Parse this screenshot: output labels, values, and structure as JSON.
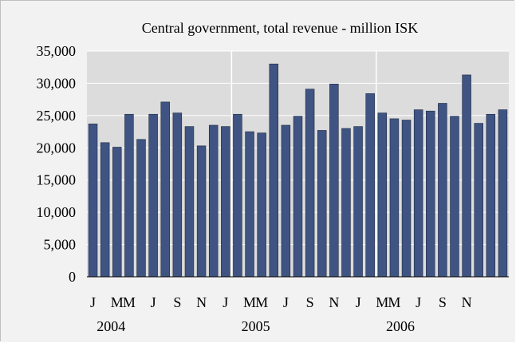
{
  "chart_data": {
    "type": "bar",
    "title": "Central government, total revenue - million ISK",
    "xlabel": "",
    "ylabel": "",
    "ylim": [
      0,
      35000
    ],
    "yticks": [
      0,
      5000,
      10000,
      15000,
      20000,
      25000,
      30000,
      35000
    ],
    "ytick_labels": [
      "0",
      "5,000",
      "10,000",
      "15,000",
      "20,000",
      "25,000",
      "30,000",
      "35,000"
    ],
    "grid": true,
    "legend": "none",
    "bar_color": "#3F5482",
    "plot_background": "#DCDCDC",
    "frame_background": "#F2F2F2",
    "categories": [
      "2004-01",
      "2004-02",
      "2004-03",
      "2004-04",
      "2004-05",
      "2004-06",
      "2004-07",
      "2004-08",
      "2004-09",
      "2004-10",
      "2004-11",
      "2004-12",
      "2005-01",
      "2005-02",
      "2005-03",
      "2005-04",
      "2005-05",
      "2005-06",
      "2005-07",
      "2005-08",
      "2005-09",
      "2005-10",
      "2005-11",
      "2005-12",
      "2006-01",
      "2006-02",
      "2006-03",
      "2006-04",
      "2006-05",
      "2006-06",
      "2006-07",
      "2006-08",
      "2006-09",
      "2006-10",
      "2006-11"
    ],
    "values": [
      23700,
      20800,
      20100,
      25200,
      21300,
      25200,
      27100,
      25400,
      23300,
      20300,
      23500,
      23300,
      25200,
      22500,
      22300,
      33000,
      23500,
      24900,
      29100,
      22700,
      29900,
      23000,
      23300,
      28400,
      25400,
      24500,
      24300,
      25900,
      25700,
      26900,
      24900,
      31300,
      23800,
      25200,
      25900
    ],
    "x_tick_labels": [
      "J",
      "M",
      "M",
      "J",
      "S",
      "N",
      "J",
      "M",
      "M",
      "J",
      "S",
      "N",
      "J",
      "M",
      "M",
      "J",
      "S",
      "N"
    ],
    "x_tick_positions": [
      0,
      2,
      3,
      5,
      7,
      9,
      11,
      13,
      14,
      16,
      18,
      20,
      22,
      24,
      25,
      27,
      29,
      31
    ],
    "year_labels": [
      "2004",
      "2005",
      "2006"
    ]
  }
}
